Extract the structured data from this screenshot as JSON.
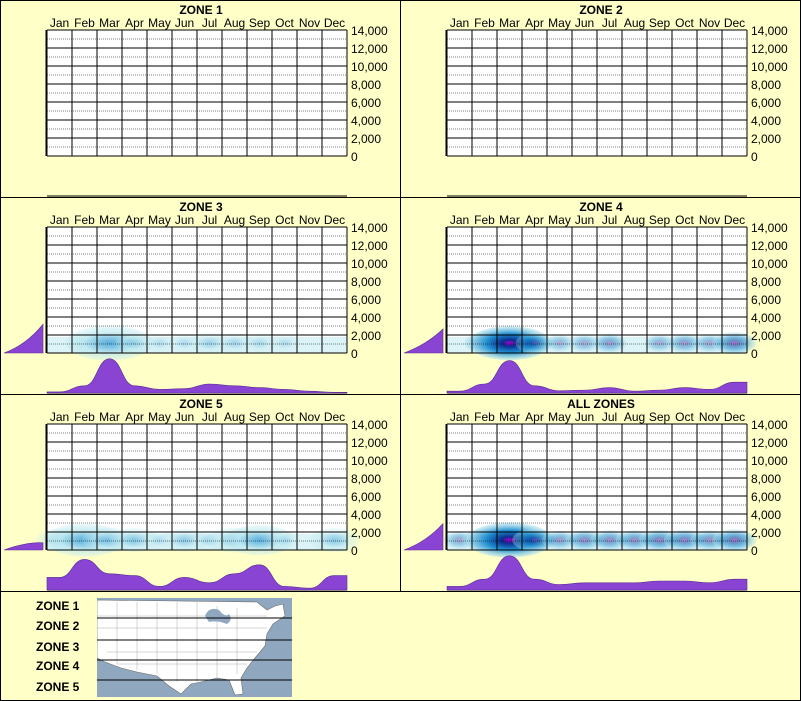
{
  "chart_data": [
    {
      "type": "heatmap",
      "title": "ZONE 1",
      "months": [
        "Jan",
        "Feb",
        "Mar",
        "Apr",
        "May",
        "Jun",
        "Jul",
        "Aug",
        "Sep",
        "Oct",
        "Nov",
        "Dec"
      ],
      "yticks": [
        "14,000",
        "12,000",
        "10,000",
        "8,000",
        "6,000",
        "4,000",
        "2,000",
        "0"
      ],
      "ylim": [
        0,
        14000
      ],
      "monthly_profile": [
        0,
        0,
        0,
        0,
        0,
        0,
        0,
        0,
        0,
        0,
        0,
        0
      ],
      "elevation_profile_peak": 0,
      "heat_intensity": 0
    },
    {
      "type": "heatmap",
      "title": "ZONE 2",
      "months": [
        "Jan",
        "Feb",
        "Mar",
        "Apr",
        "May",
        "Jun",
        "Jul",
        "Aug",
        "Sep",
        "Oct",
        "Nov",
        "Dec"
      ],
      "yticks": [
        "14,000",
        "12,000",
        "10,000",
        "8,000",
        "6,000",
        "4,000",
        "2,000",
        "0"
      ],
      "ylim": [
        0,
        14000
      ],
      "monthly_profile": [
        0,
        0,
        0,
        0,
        0,
        0,
        0,
        0,
        0,
        0,
        0,
        0
      ],
      "elevation_profile_peak": 0,
      "heat_intensity": 0
    },
    {
      "type": "heatmap",
      "title": "ZONE 3",
      "months": [
        "Jan",
        "Feb",
        "Mar",
        "Apr",
        "May",
        "Jun",
        "Jul",
        "Aug",
        "Sep",
        "Oct",
        "Nov",
        "Dec"
      ],
      "yticks": [
        "14,000",
        "12,000",
        "10,000",
        "8,000",
        "6,000",
        "4,000",
        "2,000",
        "0"
      ],
      "ylim": [
        0,
        14000
      ],
      "monthly_profile": [
        0.03,
        0.2,
        0.95,
        0.2,
        0.1,
        0.12,
        0.25,
        0.2,
        0.15,
        0.1,
        0.05,
        0.02
      ],
      "elevation_profile_peak": 0.6,
      "heat_intensity": 0.35
    },
    {
      "type": "heatmap",
      "title": "ZONE 4",
      "months": [
        "Jan",
        "Feb",
        "Mar",
        "Apr",
        "May",
        "Jun",
        "Jul",
        "Aug",
        "Sep",
        "Oct",
        "Nov",
        "Dec"
      ],
      "yticks": [
        "14,000",
        "12,000",
        "10,000",
        "8,000",
        "6,000",
        "4,000",
        "2,000",
        "0"
      ],
      "ylim": [
        0,
        14000
      ],
      "monthly_profile": [
        0.05,
        0.25,
        0.9,
        0.2,
        0.06,
        0.08,
        0.15,
        0.05,
        0.08,
        0.15,
        0.1,
        0.3
      ],
      "elevation_profile_peak": 0.5,
      "heat_intensity": 0.9
    },
    {
      "type": "heatmap",
      "title": "ZONE 5",
      "months": [
        "Jan",
        "Feb",
        "Mar",
        "Apr",
        "May",
        "Jun",
        "Jul",
        "Aug",
        "Sep",
        "Oct",
        "Nov",
        "Dec"
      ],
      "yticks": [
        "14,000",
        "12,000",
        "10,000",
        "8,000",
        "6,000",
        "4,000",
        "2,000",
        "0"
      ],
      "ylim": [
        0,
        14000
      ],
      "monthly_profile": [
        0.35,
        0.85,
        0.45,
        0.4,
        0.1,
        0.35,
        0.2,
        0.45,
        0.7,
        0.1,
        0.05,
        0.4
      ],
      "elevation_profile_peak": 0.15,
      "heat_intensity": 0.3
    },
    {
      "type": "heatmap",
      "title": "ALL ZONES",
      "months": [
        "Jan",
        "Feb",
        "Mar",
        "Apr",
        "May",
        "Jun",
        "Jul",
        "Aug",
        "Sep",
        "Oct",
        "Nov",
        "Dec"
      ],
      "yticks": [
        "14,000",
        "12,000",
        "10,000",
        "8,000",
        "6,000",
        "4,000",
        "2,000",
        "0"
      ],
      "ylim": [
        0,
        14000
      ],
      "monthly_profile": [
        0.1,
        0.3,
        0.95,
        0.3,
        0.15,
        0.2,
        0.2,
        0.2,
        0.25,
        0.25,
        0.2,
        0.3
      ],
      "elevation_profile_peak": 0.55,
      "heat_intensity": 1
    }
  ],
  "legend": {
    "zones": [
      "ZONE 1",
      "ZONE 2",
      "ZONE 3",
      "ZONE 4",
      "ZONE 5"
    ]
  },
  "colors": {
    "background": "#ffffc8",
    "profile_fill": "#8a44d4",
    "heat_low": "#bfeaf0",
    "heat_mid": "#1f8fd0",
    "heat_high": "#0a2d8e",
    "heat_peak": "#b000d0",
    "map_water": "#8fa8c0",
    "map_land": "#ffffff"
  }
}
